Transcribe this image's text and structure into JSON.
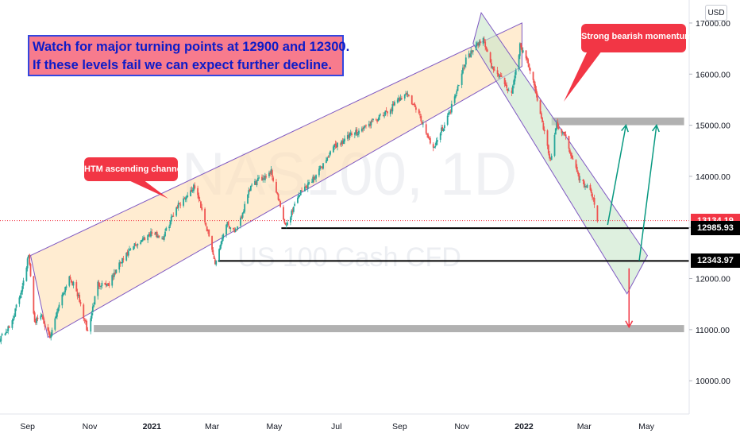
{
  "currency_label": "USD",
  "watermark": {
    "symbol": "NAS100, 1D",
    "name": "US 100 Cash CFD"
  },
  "notes": {
    "main_line1": "Watch for major turning points at 12900 and 12300.",
    "main_line2": "If these levels fail we can expect further decline.",
    "bearish": "Strong bearish momentum",
    "channel": "HTM ascending channel"
  },
  "price_tags": [
    {
      "label": "13134.19",
      "value": 13134.19,
      "color": "#f23645"
    },
    {
      "label": "12985.93",
      "value": 12985.93,
      "color": "#000000"
    },
    {
      "label": "12343.97",
      "value": 12343.97,
      "color": "#000000"
    }
  ],
  "chart_data": {
    "type": "candlestick",
    "title": "",
    "xlabel": "",
    "ylabel": "",
    "ylim": [
      9350,
      17450
    ],
    "y_ticks": [
      10000,
      11000,
      12000,
      13000,
      14000,
      15000,
      16000,
      17000
    ],
    "y_tick_labels": [
      "10000.00",
      "11000.00",
      "12000.00",
      "13000.00",
      "14000.00",
      "15000.00",
      "16000.00",
      "17000.00"
    ],
    "x_tick_labels": [
      "Sep",
      "Nov",
      "2021",
      "Mar",
      "May",
      "Jul",
      "Sep",
      "Nov",
      "2022",
      "Mar",
      "May"
    ],
    "x_tick_dates": [
      "2020-09-01",
      "2020-11-01",
      "2021-01-01",
      "2021-03-01",
      "2021-05-01",
      "2021-07-01",
      "2021-09-01",
      "2021-11-01",
      "2022-01-01",
      "2022-03-01",
      "2022-05-01"
    ],
    "x_range": [
      "2020-08-05",
      "2022-06-12"
    ],
    "up_color": "#26a69a",
    "down_color": "#ef5350",
    "close_path": [
      [
        "2020-08-05",
        10850
      ],
      [
        "2020-08-15",
        11050
      ],
      [
        "2020-08-25",
        11700
      ],
      [
        "2020-09-02",
        12450
      ],
      [
        "2020-09-08",
        11150
      ],
      [
        "2020-09-15",
        11300
      ],
      [
        "2020-09-23",
        10800
      ],
      [
        "2020-10-01",
        11450
      ],
      [
        "2020-10-12",
        12050
      ],
      [
        "2020-10-20",
        11700
      ],
      [
        "2020-10-30",
        10950
      ],
      [
        "2020-11-09",
        11900
      ],
      [
        "2020-11-20",
        11900
      ],
      [
        "2020-12-01",
        12300
      ],
      [
        "2020-12-15",
        12650
      ],
      [
        "2020-12-31",
        12900
      ],
      [
        "2021-01-12",
        12800
      ],
      [
        "2021-01-25",
        13400
      ],
      [
        "2021-02-12",
        13800
      ],
      [
        "2021-02-20",
        13300
      ],
      [
        "2021-03-04",
        12300
      ],
      [
        "2021-03-15",
        13100
      ],
      [
        "2021-03-25",
        12900
      ],
      [
        "2021-04-08",
        13800
      ],
      [
        "2021-04-28",
        14100
      ],
      [
        "2021-05-12",
        13000
      ],
      [
        "2021-05-25",
        13650
      ],
      [
        "2021-06-10",
        14000
      ],
      [
        "2021-06-30",
        14600
      ],
      [
        "2021-07-15",
        14800
      ],
      [
        "2021-08-01",
        15000
      ],
      [
        "2021-08-20",
        15250
      ],
      [
        "2021-09-07",
        15650
      ],
      [
        "2021-09-20",
        15200
      ],
      [
        "2021-10-04",
        14550
      ],
      [
        "2021-10-20",
        15250
      ],
      [
        "2021-11-05",
        16300
      ],
      [
        "2021-11-22",
        16700
      ],
      [
        "2021-11-30",
        16150
      ],
      [
        "2021-12-10",
        15900
      ],
      [
        "2021-12-20",
        15600
      ],
      [
        "2021-12-28",
        16550
      ],
      [
        "2022-01-05",
        16250
      ],
      [
        "2022-01-14",
        15500
      ],
      [
        "2022-01-27",
        14300
      ],
      [
        "2022-02-02",
        15000
      ],
      [
        "2022-02-10",
        14800
      ],
      [
        "2022-02-24",
        13950
      ],
      [
        "2022-03-08",
        13700
      ],
      [
        "2022-03-14",
        13134
      ]
    ],
    "series": [
      {
        "name": "",
        "type": "horizontal_level",
        "value": 12985.93,
        "from": "2021-05-08",
        "to": "2022-06-12",
        "color": "#000000"
      },
      {
        "name": "",
        "type": "horizontal_level",
        "value": 12343.97,
        "from": "2021-03-07",
        "to": "2022-06-12",
        "color": "#000000"
      },
      {
        "name": "",
        "type": "horizontal_level",
        "value": 13134.19,
        "from": "2020-08-05",
        "to": "2022-06-12",
        "color": "#f23645"
      }
    ],
    "zones": [
      {
        "kind": "resistance",
        "low": 15000,
        "high": 15150,
        "from": "2022-01-28",
        "to": "2022-06-07",
        "color": "#9e9e9e"
      },
      {
        "kind": "support",
        "low": 10950,
        "high": 11090,
        "from": "2020-11-05",
        "to": "2022-06-07",
        "color": "#9e9e9e"
      }
    ],
    "channels": [
      {
        "name": "ascending",
        "polygon": [
          [
            "2020-09-04",
            12450
          ],
          [
            "2021-12-30",
            17000
          ],
          [
            "2021-12-30",
            16150
          ],
          [
            "2020-09-21",
            10850
          ]
        ],
        "fill": "#ffe0b2",
        "stroke": "#7e57c2"
      },
      {
        "name": "descending",
        "polygon": [
          [
            "2021-11-20",
            17200
          ],
          [
            "2022-05-02",
            12450
          ],
          [
            "2022-04-12",
            11700
          ],
          [
            "2021-11-12",
            16600
          ]
        ],
        "fill": "#c8e6c9",
        "stroke": "#7e57c2"
      }
    ],
    "arrows": [
      {
        "color": "#089981",
        "from": [
          "2022-03-24",
          13050
        ],
        "to": [
          "2022-04-11",
          15000
        ]
      },
      {
        "color": "#089981",
        "from": [
          "2022-04-24",
          12350
        ],
        "to": [
          "2022-05-11",
          15000
        ]
      },
      {
        "color": "#f23645",
        "from": [
          "2022-04-14",
          12200
        ],
        "to": [
          "2022-04-14",
          11050
        ]
      }
    ],
    "legend": "none",
    "grid": false
  }
}
